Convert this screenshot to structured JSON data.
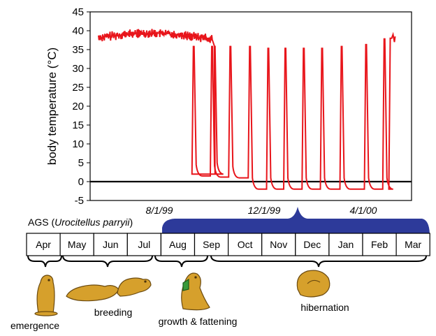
{
  "chart_data": {
    "type": "line",
    "ylabel": "body temperature (°C)",
    "ylim": [
      -5,
      45
    ],
    "yticks": [
      "45",
      "40",
      "35",
      "30",
      "25",
      "20",
      "15",
      "10",
      "5",
      "0",
      "-5"
    ],
    "date_labels": [
      "8/1/99",
      "12/1/99",
      "4/1/00"
    ],
    "series": [
      {
        "name": "body temperature",
        "color": "#e8151b",
        "summer_range": [
          37.5,
          40
        ],
        "bouts": [
          {
            "x": 0.385,
            "peak": 36,
            "trough": 2
          },
          {
            "x": 0.46,
            "peak": 36,
            "trough": 1.5
          },
          {
            "x": 0.535,
            "peak": 36,
            "trough": 1.2
          },
          {
            "x": 0.615,
            "peak": 36,
            "trough": 1
          },
          {
            "x": 0.69,
            "peak": 35.5,
            "trough": -2
          },
          {
            "x": 0.76,
            "peak": 35.5,
            "trough": -2
          },
          {
            "x": 0.835,
            "peak": 35.5,
            "trough": -2
          },
          {
            "x": 0.91,
            "peak": 35.5,
            "trough": -2
          },
          {
            "x": 0.99,
            "peak": 36,
            "trough": -2
          },
          {
            "x": 1.09,
            "peak": 36.5,
            "trough": -2
          },
          {
            "x": 1.165,
            "peak": 38,
            "trough": -2
          },
          {
            "x": 1.19,
            "peak": 38,
            "trough": -2
          }
        ]
      }
    ]
  },
  "species": {
    "label": "AGS",
    "latin": "Urocitellus parryii"
  },
  "months": [
    "Apr",
    "May",
    "Jun",
    "Jul",
    "Aug",
    "Sep",
    "Oct",
    "Nov",
    "Dec",
    "Jan",
    "Feb",
    "Mar"
  ],
  "stages": [
    "emergence",
    "breeding",
    "growth & fattening",
    "hibernation"
  ],
  "colors": {
    "trace": "#e8151b",
    "hibernation_bar": "#2d3a9a",
    "animal": "#d6a02c",
    "animal_outline": "#6b4a10"
  }
}
